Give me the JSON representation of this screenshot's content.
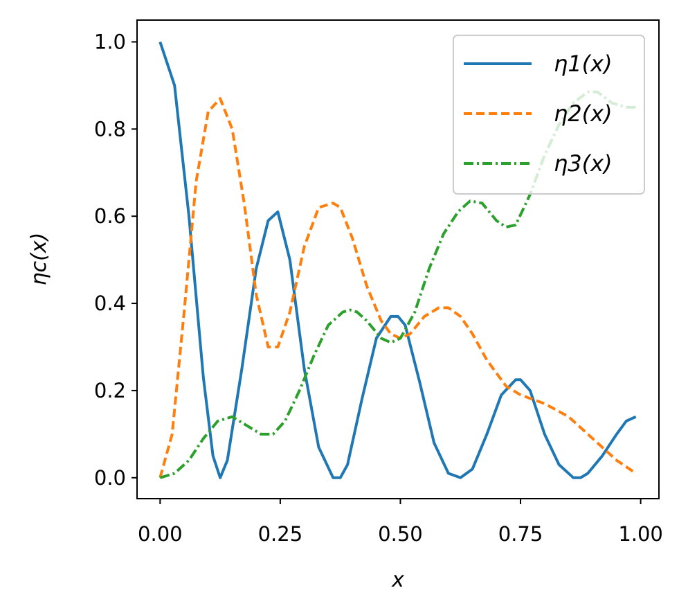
{
  "chart_data": {
    "type": "line",
    "xlabel": "x",
    "ylabel": "ηc(x)",
    "xlim": [
      -0.048,
      1.038
    ],
    "ylim": [
      -0.048,
      1.05
    ],
    "x_ticks": [
      "0.00",
      "0.25",
      "0.50",
      "0.75",
      "1.00"
    ],
    "y_ticks": [
      "0.0",
      "0.2",
      "0.4",
      "0.6",
      "0.8",
      "1.0"
    ],
    "grid": false,
    "legend_position": "top-right",
    "series": [
      {
        "name": "η1(x)",
        "color": "#1f77b4",
        "style": "solid",
        "x": [
          0.0,
          0.03,
          0.06,
          0.09,
          0.11,
          0.125,
          0.14,
          0.17,
          0.2,
          0.225,
          0.245,
          0.27,
          0.3,
          0.33,
          0.36,
          0.375,
          0.39,
          0.42,
          0.45,
          0.48,
          0.495,
          0.51,
          0.54,
          0.57,
          0.6,
          0.625,
          0.65,
          0.68,
          0.71,
          0.74,
          0.75,
          0.77,
          0.8,
          0.83,
          0.86,
          0.875,
          0.89,
          0.92,
          0.95,
          0.97,
          0.99
        ],
        "y": [
          1.0,
          0.9,
          0.6,
          0.23,
          0.05,
          0.0,
          0.04,
          0.25,
          0.48,
          0.59,
          0.61,
          0.5,
          0.25,
          0.07,
          0.0,
          0.0,
          0.03,
          0.18,
          0.32,
          0.37,
          0.37,
          0.35,
          0.22,
          0.08,
          0.01,
          0.0,
          0.02,
          0.1,
          0.19,
          0.225,
          0.225,
          0.2,
          0.1,
          0.03,
          0.0,
          0.0,
          0.01,
          0.05,
          0.1,
          0.13,
          0.14
        ]
      },
      {
        "name": "η2(x)",
        "color": "#ff7f0e",
        "style": "dashed",
        "x": [
          0.0,
          0.025,
          0.05,
          0.075,
          0.1,
          0.125,
          0.15,
          0.175,
          0.2,
          0.225,
          0.245,
          0.27,
          0.3,
          0.33,
          0.36,
          0.375,
          0.4,
          0.43,
          0.46,
          0.48,
          0.5,
          0.52,
          0.55,
          0.58,
          0.6,
          0.625,
          0.65,
          0.68,
          0.72,
          0.75,
          0.8,
          0.85,
          0.9,
          0.95,
          0.99
        ],
        "y": [
          0.0,
          0.1,
          0.38,
          0.68,
          0.84,
          0.87,
          0.8,
          0.63,
          0.42,
          0.3,
          0.3,
          0.38,
          0.53,
          0.62,
          0.63,
          0.62,
          0.55,
          0.44,
          0.36,
          0.33,
          0.32,
          0.33,
          0.37,
          0.39,
          0.39,
          0.37,
          0.33,
          0.27,
          0.21,
          0.19,
          0.17,
          0.14,
          0.09,
          0.04,
          0.01
        ]
      },
      {
        "name": "η3(x)",
        "color": "#2ca02c",
        "style": "dashdot",
        "x": [
          0.0,
          0.03,
          0.06,
          0.09,
          0.12,
          0.15,
          0.18,
          0.21,
          0.235,
          0.26,
          0.29,
          0.32,
          0.35,
          0.38,
          0.395,
          0.41,
          0.43,
          0.46,
          0.48,
          0.5,
          0.53,
          0.56,
          0.59,
          0.62,
          0.645,
          0.67,
          0.7,
          0.72,
          0.74,
          0.77,
          0.8,
          0.83,
          0.86,
          0.89,
          0.91,
          0.94,
          0.97,
          0.99
        ],
        "y": [
          0.0,
          0.01,
          0.04,
          0.09,
          0.13,
          0.14,
          0.12,
          0.1,
          0.1,
          0.13,
          0.2,
          0.28,
          0.35,
          0.38,
          0.385,
          0.38,
          0.36,
          0.32,
          0.31,
          0.32,
          0.38,
          0.48,
          0.56,
          0.61,
          0.635,
          0.63,
          0.59,
          0.575,
          0.58,
          0.65,
          0.74,
          0.81,
          0.86,
          0.885,
          0.885,
          0.86,
          0.85,
          0.85
        ]
      }
    ]
  }
}
